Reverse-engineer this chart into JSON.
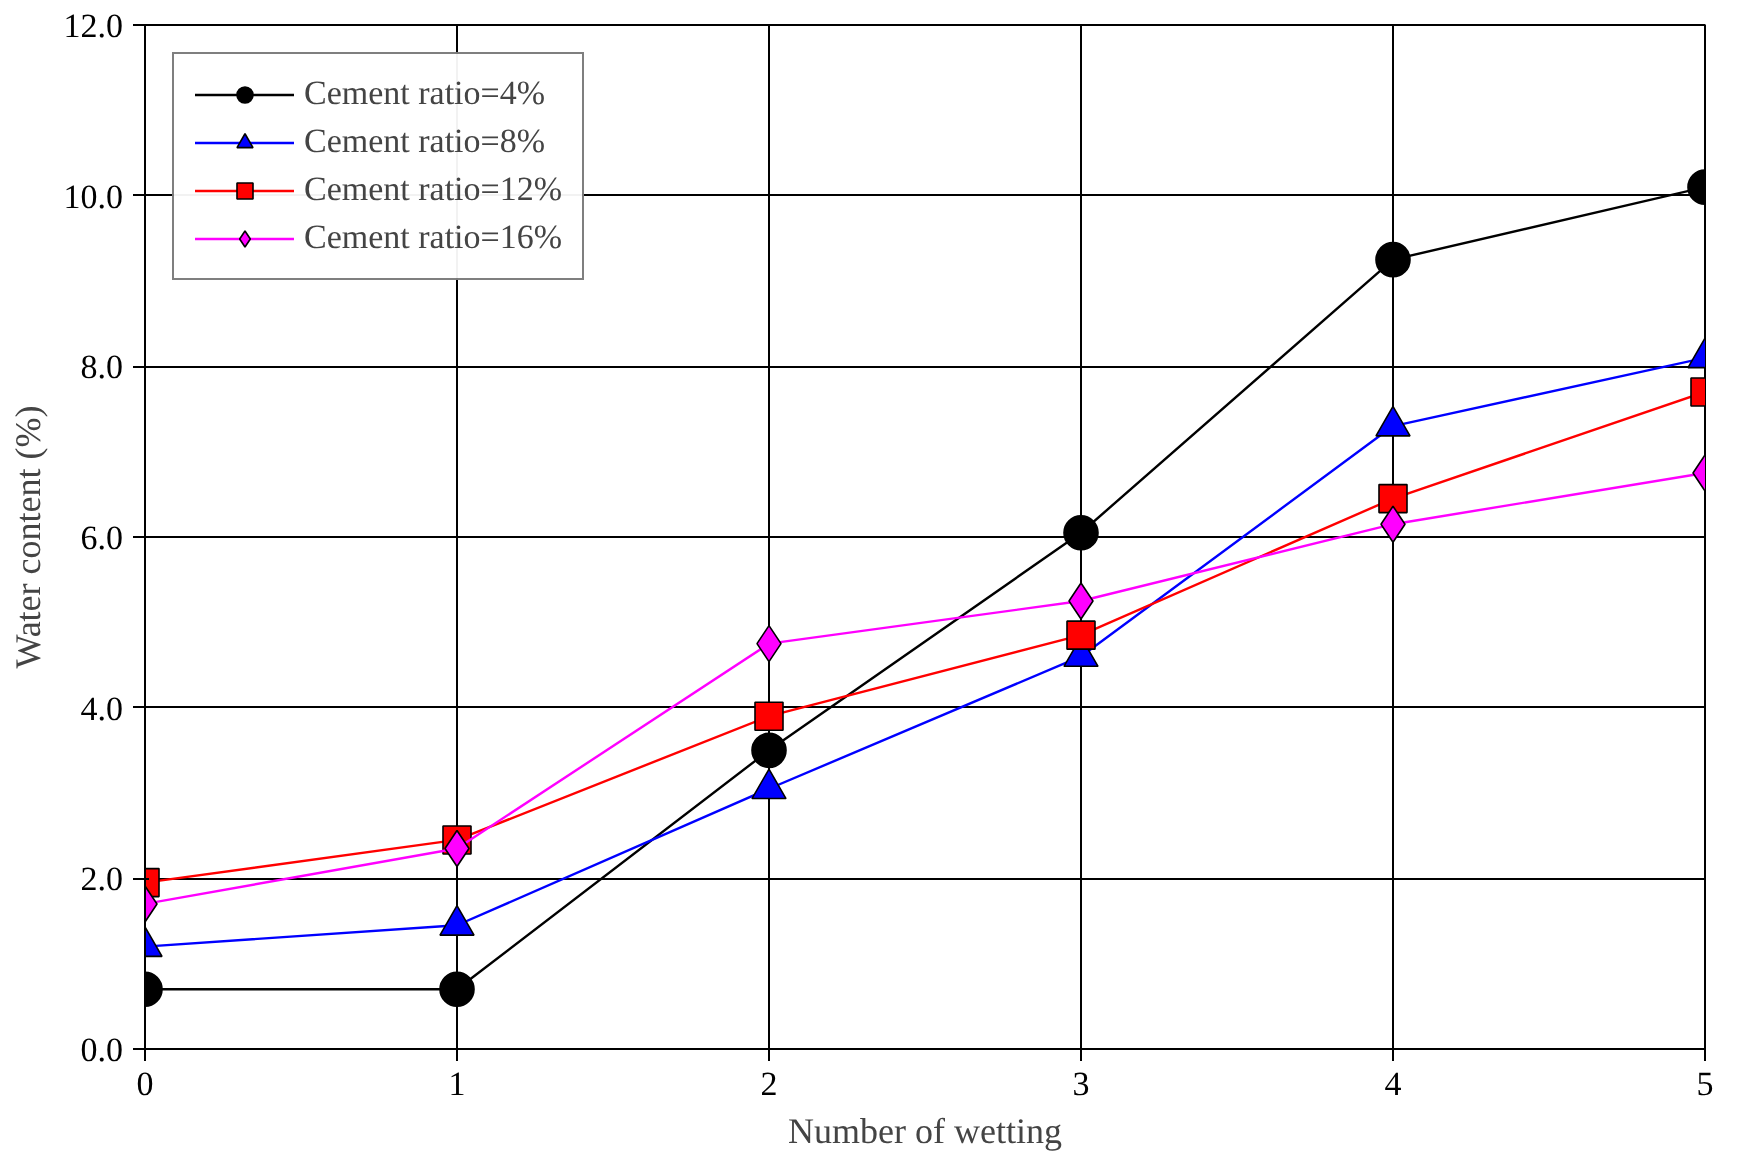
{
  "chart_data": {
    "type": "line",
    "xlabel": "Number of wetting",
    "ylabel": "Water content (%)",
    "x": [
      0,
      1,
      2,
      3,
      4,
      5
    ],
    "series": [
      {
        "name": "Cement ratio=4%",
        "color": "#000000",
        "marker": "circle",
        "values": [
          0.7,
          0.7,
          3.5,
          6.05,
          9.25,
          10.1
        ]
      },
      {
        "name": "Cement ratio=8%",
        "color": "#0000ff",
        "marker": "triangle",
        "values": [
          1.2,
          1.45,
          3.05,
          4.6,
          7.3,
          8.1
        ]
      },
      {
        "name": "Cement ratio=12%",
        "color": "#ff0000",
        "marker": "square",
        "values": [
          1.95,
          2.45,
          3.9,
          4.85,
          6.45,
          7.7
        ]
      },
      {
        "name": "Cement ratio=16%",
        "color": "#ff00ff",
        "marker": "diamond",
        "values": [
          1.7,
          2.35,
          4.75,
          5.25,
          6.15,
          6.75
        ]
      }
    ],
    "xlim": [
      0,
      5
    ],
    "xticks": [
      0,
      1,
      2,
      3,
      4,
      5
    ],
    "ylim": [
      0,
      12
    ],
    "yticks": [
      {
        "value": 0,
        "label": "0.0"
      },
      {
        "value": 2,
        "label": "2.0"
      },
      {
        "value": 4,
        "label": "4.0"
      },
      {
        "value": 6,
        "label": "6.0"
      },
      {
        "value": 8,
        "label": "8.0"
      },
      {
        "value": 10,
        "label": "10.0"
      },
      {
        "value": 12,
        "label": "12.0"
      }
    ],
    "grid": true,
    "legend": "top left",
    "line_style": "solid"
  }
}
